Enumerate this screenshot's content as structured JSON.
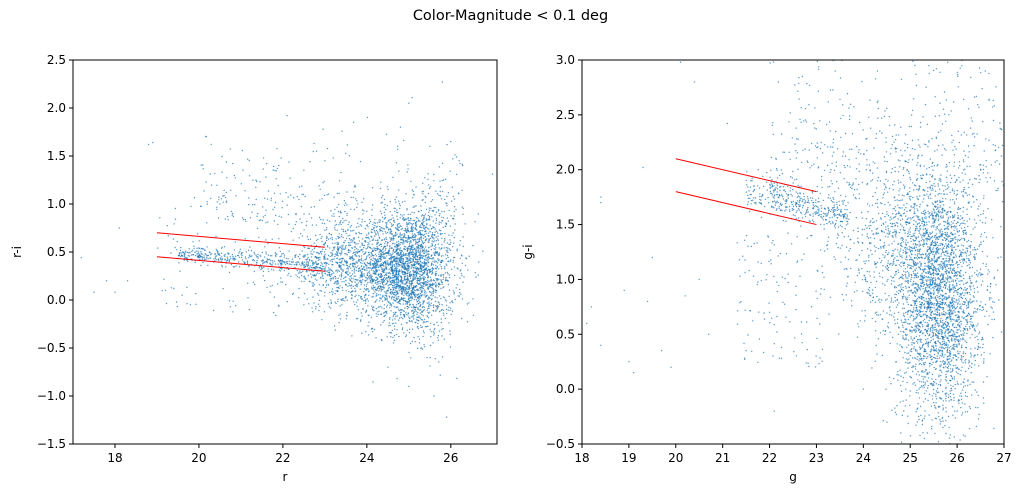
{
  "figure": {
    "suptitle": "Color-Magnitude < 0.1 deg"
  },
  "colors": {
    "points": "#1f77b4",
    "fit_lines": "#ff0000"
  },
  "chart_data": [
    {
      "type": "scatter",
      "xlabel": "r",
      "ylabel": "r-i",
      "xlim": [
        17,
        27.1
      ],
      "ylim": [
        -1.5,
        2.5
      ],
      "xticks": [
        "18",
        "20",
        "22",
        "24",
        "26"
      ],
      "yticks": [
        "−1.5",
        "−1.0",
        "−0.5",
        "0.0",
        "0.5",
        "1.0",
        "1.5",
        "2.0",
        "2.5"
      ],
      "grid": false,
      "lines": [
        {
          "x": [
            19,
            23
          ],
          "y": [
            0.7,
            0.55
          ]
        },
        {
          "x": [
            19,
            23
          ],
          "y": [
            0.45,
            0.3
          ]
        }
      ],
      "sample_points": [
        [
          17.2,
          0.44
        ],
        [
          17.5,
          0.08
        ],
        [
          17.8,
          0.2
        ],
        [
          18.0,
          0.08
        ],
        [
          18.1,
          0.75
        ],
        [
          18.3,
          0.2
        ],
        [
          18.8,
          1.62
        ],
        [
          18.9,
          1.64
        ],
        [
          19.2,
          0.1
        ],
        [
          19.4,
          0.12
        ],
        [
          19.6,
          0.05
        ],
        [
          19.8,
          -0.05
        ],
        [
          20.5,
          1.0
        ],
        [
          20.8,
          0.9
        ],
        [
          21.4,
          0.9
        ],
        [
          21.9,
          1.4
        ],
        [
          22.1,
          1.92
        ],
        [
          22.8,
          1.55
        ],
        [
          23.0,
          1.45
        ],
        [
          23.2,
          1.48
        ],
        [
          24.8,
          1.8
        ],
        [
          25.0,
          2.05
        ],
        [
          25.5,
          1.6
        ],
        [
          25.8,
          2.27
        ],
        [
          26.0,
          1.65
        ],
        [
          26.2,
          1.45
        ],
        [
          25.0,
          -0.9
        ],
        [
          25.6,
          -1.0
        ],
        [
          25.9,
          -1.22
        ],
        [
          24.5,
          -0.7
        ],
        [
          25.3,
          -0.5
        ],
        [
          21.2,
          -0.1
        ],
        [
          22.5,
          -0.05
        ],
        [
          23.8,
          0.3
        ],
        [
          24.2,
          0.8
        ]
      ]
    },
    {
      "type": "scatter",
      "xlabel": "g",
      "ylabel": "g-i",
      "xlim": [
        18,
        27
      ],
      "ylim": [
        -0.5,
        3.0
      ],
      "xticks": [
        "18",
        "19",
        "20",
        "21",
        "22",
        "23",
        "24",
        "25",
        "26",
        "27"
      ],
      "yticks": [
        "−0.5",
        "0.0",
        "0.5",
        "1.0",
        "1.5",
        "2.0",
        "2.5",
        "3.0"
      ],
      "grid": false,
      "lines": [
        {
          "x": [
            20,
            23
          ],
          "y": [
            2.1,
            1.8
          ]
        },
        {
          "x": [
            20,
            23
          ],
          "y": [
            1.8,
            1.5
          ]
        }
      ],
      "sample_points": [
        [
          18.1,
          0.6
        ],
        [
          18.2,
          0.75
        ],
        [
          18.4,
          1.7
        ],
        [
          18.4,
          1.75
        ],
        [
          18.4,
          0.4
        ],
        [
          18.0,
          1.5
        ],
        [
          18.9,
          0.9
        ],
        [
          19.0,
          0.25
        ],
        [
          19.1,
          0.15
        ],
        [
          19.3,
          2.02
        ],
        [
          19.4,
          0.8
        ],
        [
          19.5,
          1.2
        ],
        [
          19.7,
          0.35
        ],
        [
          19.9,
          0.2
        ],
        [
          20.1,
          2.98
        ],
        [
          20.2,
          0.85
        ],
        [
          20.4,
          2.8
        ],
        [
          20.5,
          1.0
        ],
        [
          20.7,
          0.5
        ],
        [
          21.1,
          2.42
        ],
        [
          21.5,
          0.35
        ],
        [
          22.0,
          0.7
        ],
        [
          22.1,
          -0.2
        ],
        [
          22.7,
          2.85
        ],
        [
          22.9,
          1.4
        ],
        [
          23.4,
          2.9
        ],
        [
          24.3,
          2.9
        ],
        [
          25.1,
          2.95
        ],
        [
          25.8,
          2.98
        ],
        [
          26.6,
          2.9
        ],
        [
          24.8,
          -0.4
        ],
        [
          25.3,
          -0.45
        ],
        [
          25.7,
          -0.35
        ],
        [
          26.0,
          -0.2
        ],
        [
          24.0,
          0.0
        ]
      ]
    }
  ]
}
